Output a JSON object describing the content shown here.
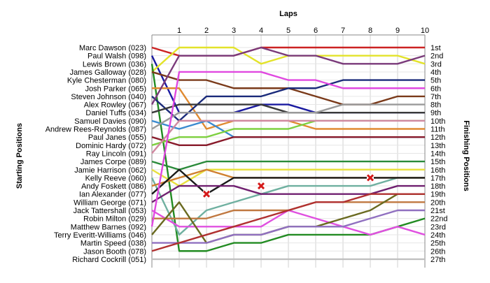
{
  "chart_data": {
    "type": "line",
    "title": "Laps",
    "ylabel_left": "Starting Positions",
    "ylabel_right": "Finishing Positions",
    "x": [
      0,
      1,
      2,
      3,
      4,
      5,
      6,
      7,
      8,
      9,
      10
    ],
    "x_tick_labels": [
      "1",
      "2",
      "3",
      "4",
      "5",
      "6",
      "7",
      "8",
      "9",
      "10"
    ],
    "grid": true,
    "starting_labels": [
      "Marc Dawson (023)",
      "Paul Walsh (098)",
      "Lewis Brown (036)",
      "James Galloway (028)",
      "Kyle Chesterman (080)",
      "Josh Parker (065)",
      "Steven Johnson (040)",
      "Alex Rowley (067)",
      "Daniel Tuffs (034)",
      "Samuel Davies (090)",
      "Andrew Rees-Reynolds (087)",
      "Paul Janes (055)",
      "Dominic Hardy (072)",
      "Ray Lincoln (091)",
      "James Corpe (089)",
      "Jamie Harrison (062)",
      "Kelly Reeve (060)",
      "Andy Foskett (086)",
      "Ian Alexander (077)",
      "William George (071)",
      "Jack Tattershall (053)",
      "Robin Milton (029)",
      "Matthew Barnes (092)",
      "Terry Everitt-Williams (046)",
      "Martin Speed (038)",
      "Jason Booth (078)",
      "Richard Cockrill (051)"
    ],
    "finishing_labels": [
      "1st",
      "2nd",
      "3rd",
      "4th",
      "5th",
      "6th",
      "7th",
      "8th",
      "9th",
      "10th",
      "11th",
      "12th",
      "13th",
      "14th",
      "15th",
      "16th",
      "17th",
      "18th",
      "19th",
      "20th",
      "21st",
      "22nd",
      "23rd",
      "24th",
      "25th",
      "26th",
      "27th"
    ],
    "series": [
      {
        "color": "#cc2222",
        "values": [
          1,
          2,
          2,
          2,
          1,
          1,
          1,
          1,
          1,
          1,
          1
        ]
      },
      {
        "color": "#1a1aa0",
        "values": [
          2,
          9,
          9,
          9,
          8,
          8,
          9,
          9,
          9,
          9,
          9
        ]
      },
      {
        "color": "#e3e32a",
        "values": [
          4,
          1,
          1,
          1,
          3,
          2,
          2,
          2,
          2,
          2,
          3
        ]
      },
      {
        "color": "#228b22",
        "values": [
          3,
          26,
          26,
          25,
          25,
          24,
          24,
          24,
          24,
          23,
          22
        ]
      },
      {
        "color": "#7a3a1a",
        "values": [
          4,
          5,
          5,
          6,
          6,
          6,
          7,
          8,
          8,
          7,
          7
        ]
      },
      {
        "color": "#e08a30",
        "values": [
          6,
          6,
          11,
          10,
          10,
          10,
          11,
          11,
          11,
          11,
          11
        ]
      },
      {
        "color": "#1a2a7a",
        "values": [
          7,
          10,
          7,
          7,
          7,
          6,
          6,
          5,
          5,
          5,
          5
        ]
      },
      {
        "color": "#7a3a7a",
        "values": [
          8,
          2,
          2,
          2,
          1,
          2,
          2,
          3,
          3,
          3,
          2
        ]
      },
      {
        "color": "#3a3a3a",
        "values": [
          9,
          8,
          8,
          8,
          8,
          9,
          9,
          9,
          9,
          9,
          9
        ]
      },
      {
        "color": "#3a8ad0",
        "values": [
          10,
          11,
          10,
          12,
          12,
          12,
          12,
          12,
          12,
          12,
          12
        ]
      },
      {
        "color": "#9a9a9a",
        "values": [
          11,
          9,
          9,
          9,
          9,
          9,
          9,
          8,
          8,
          8,
          8
        ]
      },
      {
        "color": "#881a2a",
        "values": [
          12,
          13,
          13,
          12,
          12,
          12,
          12,
          12,
          12,
          12,
          12
        ]
      },
      {
        "color": "#7dd040",
        "values": [
          13,
          12,
          12,
          11,
          11,
          11,
          10,
          10,
          10,
          10,
          10
        ]
      },
      {
        "color": "#d088a0",
        "values": [
          14,
          10,
          10,
          10,
          10,
          10,
          10,
          10,
          10,
          10,
          10
        ]
      },
      {
        "color": "#2a8a3a",
        "values": [
          15,
          16,
          15,
          15,
          15,
          15,
          15,
          15,
          15,
          15,
          15
        ]
      },
      {
        "color": "#e8e040",
        "values": [
          16,
          18,
          16,
          16,
          16,
          16,
          16,
          16,
          16,
          16,
          16
        ]
      },
      {
        "color": "#6fb0a0",
        "values": [
          17,
          24,
          21,
          20,
          19,
          18,
          18,
          18,
          18,
          17,
          17
        ]
      },
      {
        "color": "#d08030",
        "values": [
          18,
          17,
          16,
          17,
          17,
          17,
          17,
          17,
          17,
          17,
          17
        ]
      },
      {
        "color": "#1a1a1a",
        "values": [
          19,
          16,
          19,
          17,
          17,
          17,
          17,
          17,
          17,
          17,
          17
        ]
      },
      {
        "color": "#702070",
        "values": [
          20,
          18,
          18,
          18,
          19,
          19,
          19,
          19,
          19,
          18,
          18
        ]
      },
      {
        "color": "#e050e0",
        "values": [
          21,
          23,
          23,
          23,
          23,
          21,
          22,
          23,
          24,
          23,
          24
        ]
      },
      {
        "color": "#c07840",
        "values": [
          22,
          22,
          22,
          21,
          21,
          21,
          20,
          20,
          20,
          20,
          20
        ]
      },
      {
        "color": "#e048e0",
        "values": [
          23,
          4,
          4,
          4,
          4,
          5,
          5,
          6,
          6,
          6,
          6
        ]
      },
      {
        "color": "#6a6a20",
        "values": [
          24,
          20,
          25,
          24,
          24,
          23,
          23,
          22,
          21,
          19,
          19
        ]
      },
      {
        "color": "#9070c0",
        "values": [
          25,
          25,
          25,
          24,
          24,
          23,
          23,
          23,
          22,
          21,
          21
        ]
      },
      {
        "color": "#b03030",
        "values": [
          26,
          25,
          24,
          23,
          22,
          21,
          20,
          20,
          19,
          19,
          19
        ]
      },
      {
        "color": "#c0c0c0",
        "values": [
          27,
          27,
          27,
          27,
          27,
          27,
          27,
          27,
          27,
          27,
          27
        ]
      }
    ],
    "retirements": [
      {
        "lap": 2,
        "position": 19
      },
      {
        "lap": 4,
        "position": 18
      },
      {
        "lap": 8,
        "position": 17
      }
    ]
  }
}
